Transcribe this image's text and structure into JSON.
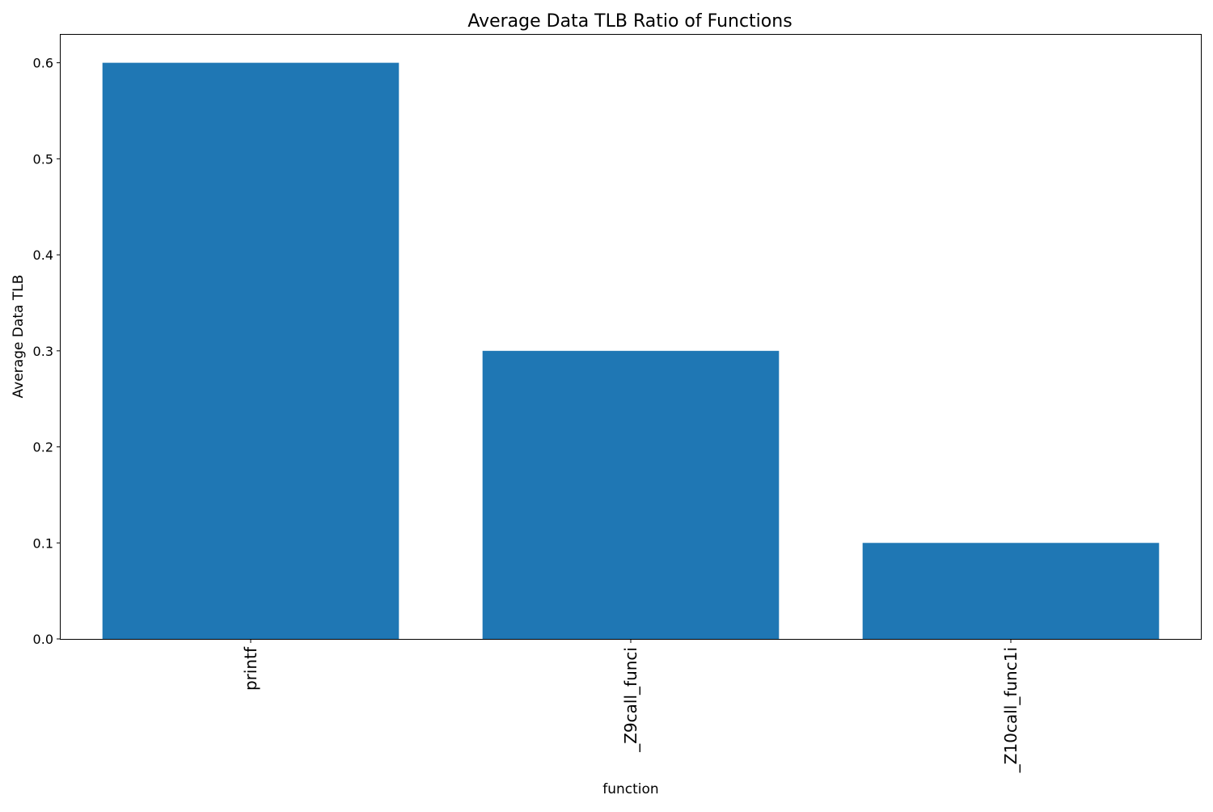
{
  "chart_data": {
    "type": "bar",
    "title": "Average Data TLB Ratio of Functions",
    "xlabel": "function",
    "ylabel": "Average Data TLB",
    "categories": [
      "printf",
      "_Z9call_funci",
      "_Z10call_func1i"
    ],
    "values": [
      0.6,
      0.3,
      0.1
    ],
    "ylim": [
      0,
      0.63
    ],
    "yticks": [
      0.0,
      0.1,
      0.2,
      0.3,
      0.4,
      0.5,
      0.6
    ],
    "ytick_labels": [
      "0.0",
      "0.1",
      "0.2",
      "0.3",
      "0.4",
      "0.5",
      "0.6"
    ],
    "grid": false,
    "bar_color": "#1f77b4"
  }
}
